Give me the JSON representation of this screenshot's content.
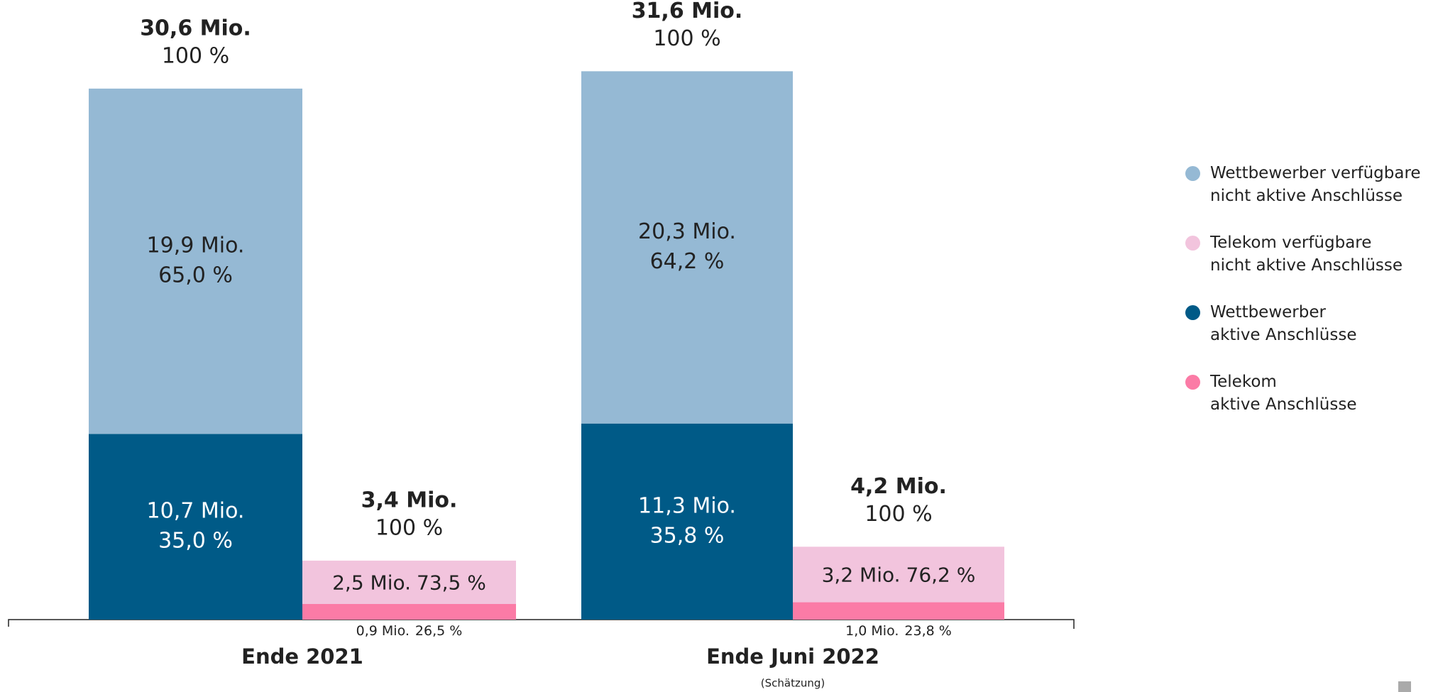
{
  "chart_data": {
    "type": "stacked_bar",
    "categories": [
      "Ende 2021",
      "Ende Juni 2022"
    ],
    "category_note": "(Schätzung)",
    "stacks": [
      {
        "totals": [
          30.6,
          31.6
        ],
        "total_labels": [
          "30,6 Mio.",
          "31,6 Mio."
        ],
        "share_labels": [
          "100 %",
          "100 %"
        ],
        "series": [
          {
            "name": "Wettbewerber\naktive Anschlüsse",
            "color": "#005a87",
            "values": [
              10.7,
              11.3
            ],
            "value_labels": [
              "10,7 Mio.",
              "11,3 Mio."
            ],
            "percent_labels": [
              "35,0 %",
              "35,8 %"
            ]
          },
          {
            "name": "Wettbewerber verfügbare\nnicht aktive Anschlüsse",
            "color": "#95b9d4",
            "values": [
              19.9,
              20.3
            ],
            "value_labels": [
              "19,9 Mio.",
              "20,3 Mio."
            ],
            "percent_labels": [
              "65,0 %",
              "64,2 %"
            ]
          }
        ]
      },
      {
        "totals": [
          3.4,
          4.2
        ],
        "total_labels": [
          "3,4 Mio.",
          "4,2 Mio."
        ],
        "share_labels": [
          "100 %",
          "100 %"
        ],
        "series": [
          {
            "name": "Telekom\naktive Anschlüsse",
            "color": "#fb7ba6",
            "values": [
              0.9,
              1.0
            ],
            "value_labels": [
              "0,9 Mio.",
              "1,0 Mio."
            ],
            "percent_labels": [
              "26,5 %",
              "23,8 %"
            ]
          },
          {
            "name": "Telekom verfügbare\nnicht aktive Anschlüsse",
            "color": "#f2c4dd",
            "values": [
              2.5,
              3.2
            ],
            "value_labels": [
              "2,5 Mio.",
              "3,2 Mio."
            ],
            "percent_labels": [
              "73,5 %",
              "76,2 %"
            ]
          }
        ]
      }
    ]
  }
}
